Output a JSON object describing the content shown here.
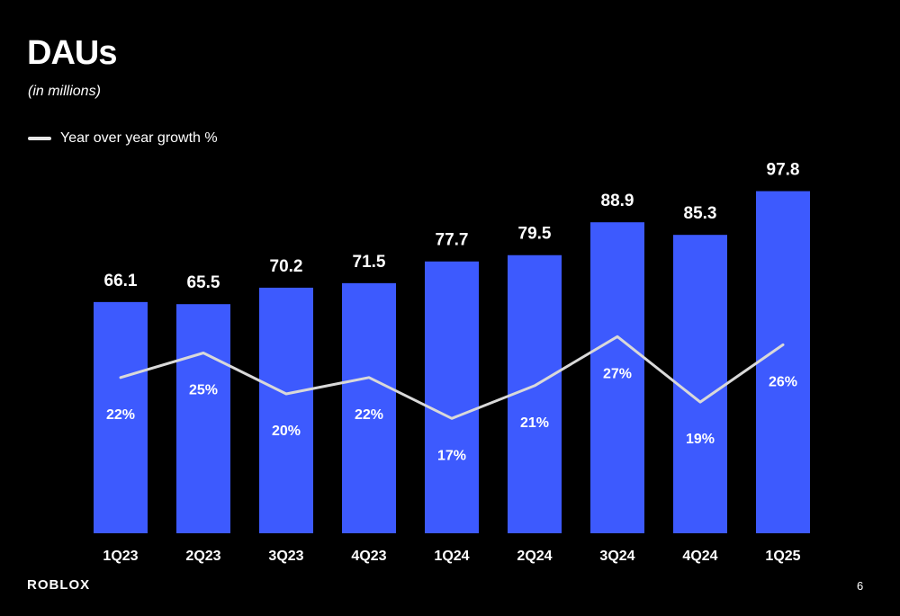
{
  "header": {
    "title": "DAUs",
    "subtitle": "(in millions)"
  },
  "legend": {
    "line_label": "Year over year growth %"
  },
  "footer": {
    "logo_text": "ROBLOX",
    "page_number": "6"
  },
  "colors": {
    "background": "#000000",
    "bar": "#3d5afe",
    "line": "#d9d9d9",
    "text": "#ffffff"
  },
  "chart_data": {
    "type": "bar",
    "categories": [
      "1Q23",
      "2Q23",
      "3Q23",
      "4Q23",
      "1Q24",
      "2Q24",
      "3Q24",
      "4Q24",
      "1Q25"
    ],
    "series": [
      {
        "type": "bar",
        "values": [
          66.1,
          65.5,
          70.2,
          71.5,
          77.7,
          79.5,
          88.9,
          85.3,
          97.8
        ],
        "labels": [
          "66.1",
          "65.5",
          "70.2",
          "71.5",
          "77.7",
          "79.5",
          "88.9",
          "85.3",
          "97.8"
        ]
      },
      {
        "name": "Year over year growth %",
        "type": "line",
        "values": [
          22,
          25,
          20,
          22,
          17,
          21,
          27,
          19,
          26
        ],
        "labels": [
          "22%",
          "25%",
          "20%",
          "22%",
          "17%",
          "21%",
          "27%",
          "19%",
          "26%"
        ]
      }
    ],
    "ylim": [
      0,
      105
    ],
    "grid": false,
    "legend_position": "top-left"
  }
}
